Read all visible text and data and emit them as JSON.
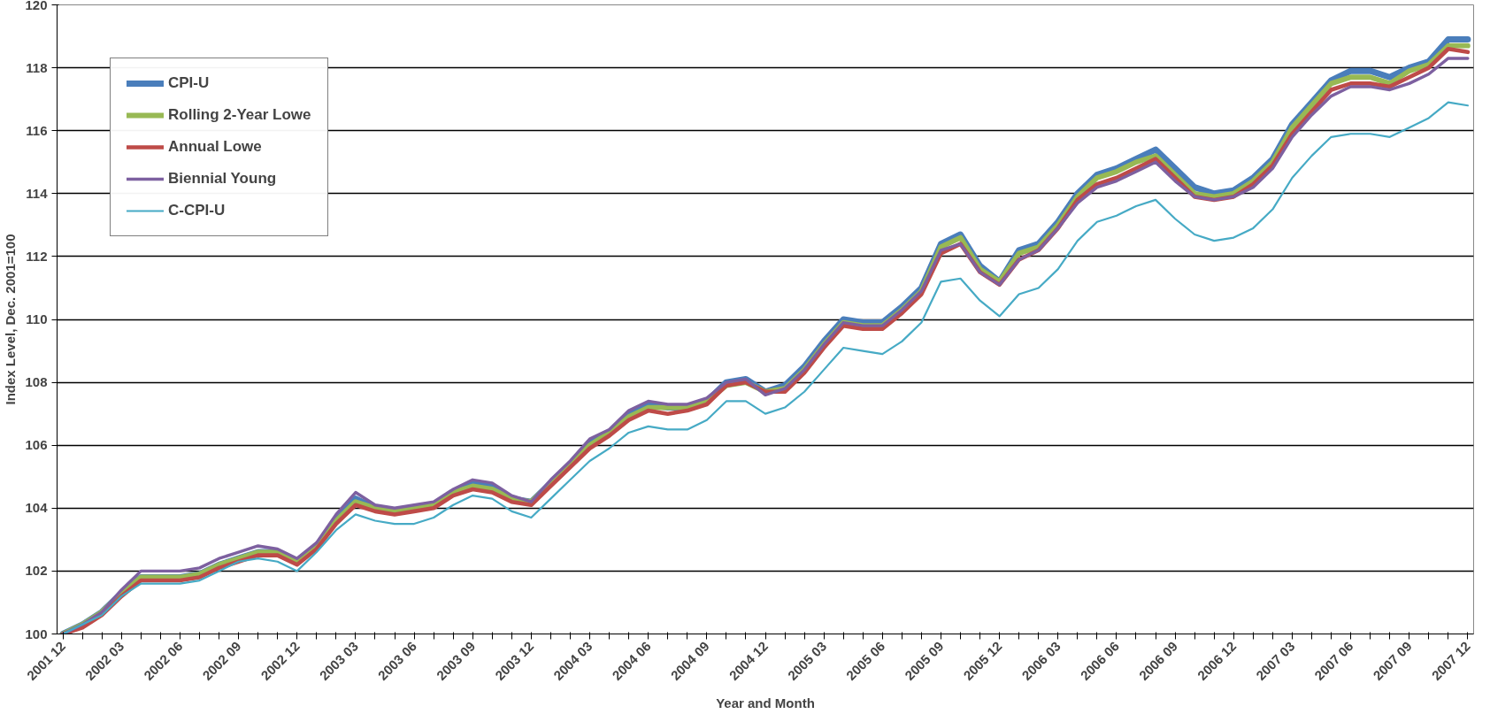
{
  "chart_data": {
    "type": "line",
    "xlabel": "Year and Month",
    "ylabel": "Index Level, Dec. 2001=100",
    "categories": [
      "2001 12",
      null,
      null,
      "2002 03",
      null,
      null,
      "2002 06",
      null,
      null,
      "2002 09",
      null,
      null,
      "2002 12",
      null,
      null,
      "2003 03",
      null,
      null,
      "2003 06",
      null,
      null,
      "2003 09",
      null,
      null,
      "2003 12",
      null,
      null,
      "2004 03",
      null,
      null,
      "2004 06",
      null,
      null,
      "2004 09",
      null,
      null,
      "2004 12",
      null,
      null,
      "2005 03",
      null,
      null,
      "2005 06",
      null,
      null,
      "2005 09",
      null,
      null,
      "2005 12",
      null,
      null,
      "2006 03",
      null,
      null,
      "2006 06",
      null,
      null,
      "2006 09",
      null,
      null,
      "2006 12",
      null,
      null,
      "2007 03",
      null,
      null,
      "2007 06",
      null,
      null,
      "2007 09",
      null,
      null,
      "2007 12"
    ],
    "ylim": [
      100,
      120
    ],
    "yticks": [
      100,
      102,
      104,
      106,
      108,
      110,
      112,
      114,
      116,
      118,
      120
    ],
    "grid": "y",
    "legend": "top left",
    "marker": "none",
    "line_style": "solid",
    "series": [
      {
        "name": "CPI-U",
        "color": "#4a7ebb",
        "values": [
          100.0,
          100.3,
          100.7,
          101.3,
          101.8,
          101.8,
          101.8,
          101.9,
          102.2,
          102.4,
          102.6,
          102.6,
          102.3,
          102.8,
          103.6,
          104.3,
          104.0,
          103.9,
          104.0,
          104.1,
          104.5,
          104.8,
          104.7,
          104.3,
          104.2,
          104.8,
          105.4,
          106.1,
          106.4,
          107.0,
          107.3,
          107.2,
          107.2,
          107.4,
          108.0,
          108.1,
          107.7,
          107.9,
          108.5,
          109.3,
          110.0,
          109.9,
          109.9,
          110.4,
          111.0,
          112.4,
          112.7,
          111.7,
          111.2,
          112.2,
          112.4,
          113.1,
          114.0,
          114.6,
          114.8,
          115.1,
          115.4,
          114.8,
          114.2,
          114.0,
          114.1,
          114.5,
          115.1,
          116.2,
          116.9,
          117.6,
          117.9,
          117.9,
          117.7,
          118.0,
          118.2,
          118.9,
          118.9
        ]
      },
      {
        "name": "Rolling 2-Year Lowe",
        "color": "#98b954",
        "values": [
          100.0,
          100.3,
          100.7,
          101.3,
          101.8,
          101.8,
          101.8,
          101.9,
          102.2,
          102.4,
          102.6,
          102.6,
          102.3,
          102.8,
          103.6,
          104.2,
          104.0,
          103.9,
          104.0,
          104.1,
          104.5,
          104.7,
          104.6,
          104.3,
          104.2,
          104.8,
          105.4,
          106.0,
          106.4,
          106.9,
          107.2,
          107.2,
          107.2,
          107.4,
          107.9,
          108.0,
          107.7,
          107.8,
          108.4,
          109.2,
          109.9,
          109.8,
          109.8,
          110.3,
          110.9,
          112.3,
          112.6,
          111.6,
          111.2,
          112.1,
          112.3,
          113.0,
          113.9,
          114.5,
          114.7,
          115.0,
          115.2,
          114.6,
          114.0,
          113.9,
          114.0,
          114.4,
          115.0,
          116.1,
          116.8,
          117.5,
          117.7,
          117.7,
          117.5,
          117.9,
          118.1,
          118.7,
          118.7
        ]
      },
      {
        "name": "Annual Lowe",
        "color": "#be4b48",
        "values": [
          100.0,
          100.2,
          100.6,
          101.2,
          101.7,
          101.7,
          101.7,
          101.8,
          102.1,
          102.3,
          102.5,
          102.5,
          102.2,
          102.7,
          103.5,
          104.1,
          103.9,
          103.8,
          103.9,
          104.0,
          104.4,
          104.6,
          104.5,
          104.2,
          104.1,
          104.7,
          105.3,
          105.9,
          106.3,
          106.8,
          107.1,
          107.0,
          107.1,
          107.3,
          107.9,
          108.0,
          107.7,
          107.7,
          108.3,
          109.1,
          109.8,
          109.7,
          109.7,
          110.2,
          110.8,
          112.1,
          112.4,
          111.5,
          111.1,
          111.9,
          112.2,
          112.9,
          113.8,
          114.3,
          114.5,
          114.8,
          115.1,
          114.5,
          113.9,
          113.8,
          113.9,
          114.3,
          114.9,
          115.9,
          116.6,
          117.3,
          117.5,
          117.5,
          117.4,
          117.7,
          118.0,
          118.6,
          118.5
        ]
      },
      {
        "name": "Biennial Young",
        "color": "#7d60a0",
        "values": [
          100.0,
          100.3,
          100.7,
          101.4,
          102.0,
          102.0,
          102.0,
          102.1,
          102.4,
          102.6,
          102.8,
          102.7,
          102.4,
          102.9,
          103.8,
          104.5,
          104.1,
          104.0,
          104.1,
          104.2,
          104.6,
          104.9,
          104.8,
          104.4,
          104.2,
          104.9,
          105.5,
          106.2,
          106.5,
          107.1,
          107.4,
          107.3,
          107.3,
          107.5,
          108.0,
          108.1,
          107.6,
          107.8,
          108.4,
          109.2,
          109.9,
          109.8,
          109.8,
          110.3,
          110.9,
          112.2,
          112.4,
          111.5,
          111.1,
          111.9,
          112.2,
          112.9,
          113.7,
          114.2,
          114.4,
          114.7,
          115.0,
          114.4,
          113.9,
          113.8,
          113.9,
          114.2,
          114.8,
          115.8,
          116.5,
          117.1,
          117.4,
          117.4,
          117.3,
          117.5,
          117.8,
          118.3,
          118.3
        ]
      },
      {
        "name": "C-CPI-U",
        "color": "#46aac5",
        "values": [
          100.0,
          100.3,
          100.6,
          101.2,
          101.6,
          101.6,
          101.6,
          101.7,
          102.0,
          102.3,
          102.4,
          102.3,
          102.0,
          102.6,
          103.3,
          103.8,
          103.6,
          103.5,
          103.5,
          103.7,
          104.1,
          104.4,
          104.3,
          103.9,
          103.7,
          104.3,
          104.9,
          105.5,
          105.9,
          106.4,
          106.6,
          106.5,
          106.5,
          106.8,
          107.4,
          107.4,
          107.0,
          107.2,
          107.7,
          108.4,
          109.1,
          109.0,
          108.9,
          109.3,
          109.9,
          111.2,
          111.3,
          110.6,
          110.1,
          110.8,
          111.0,
          111.6,
          112.5,
          113.1,
          113.3,
          113.6,
          113.8,
          113.2,
          112.7,
          112.5,
          112.6,
          112.9,
          113.5,
          114.5,
          115.2,
          115.8,
          115.9,
          115.9,
          115.8,
          116.1,
          116.4,
          116.9,
          116.8
        ]
      }
    ]
  }
}
